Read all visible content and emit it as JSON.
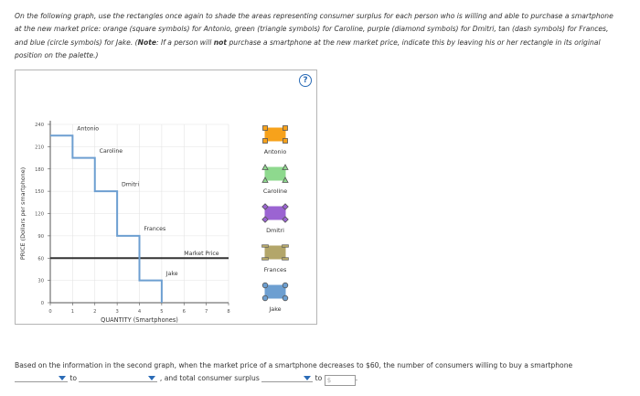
{
  "instructions": {
    "lead": "On the following graph, use the rectangles once again to shade the areas representing consumer surplus for each person who is willing and able to purchase a smartphone at the new market price: orange (square symbols) for Antonio, green (triangle symbols) for Caroline, purple (diamond symbols) for Dmitri, tan (dash symbols) for Frances, and blue (circle symbols) for Jake. (",
    "note_label": "Note",
    "note_text": ": If a person will ",
    "note_not": "not",
    "note_rest": " purchase a smartphone at the new market price, indicate this by leaving his or her rectangle in its original position on the palette.)"
  },
  "help_label": "?",
  "graph": {
    "y_axis_title": "PRICE (Dollars per smartphone)",
    "x_axis_title": "QUANTITY (Smartphones)",
    "y_ticks": [
      "240",
      "210",
      "180",
      "150",
      "120",
      "90",
      "60",
      "30",
      "0"
    ],
    "x_ticks": [
      "0",
      "1",
      "2",
      "3",
      "4",
      "5",
      "6",
      "7",
      "8"
    ],
    "market_price_label": "Market Price",
    "demand_labels": [
      "Antonio",
      "Caroline",
      "Dmitri",
      "Frances",
      "Jake"
    ]
  },
  "chart_data": {
    "type": "line",
    "title": "",
    "xlabel": "QUANTITY (Smartphones)",
    "ylabel": "PRICE (Dollars per smartphone)",
    "xlim": [
      0,
      8
    ],
    "ylim": [
      0,
      240
    ],
    "series": [
      {
        "name": "",
        "x": [
          0,
          1,
          1,
          2,
          2,
          3,
          3,
          4,
          4,
          5,
          5
        ],
        "y": [
          225,
          225,
          195,
          195,
          150,
          150,
          90,
          90,
          30,
          30,
          0
        ]
      }
    ],
    "market_price": 60,
    "labels": [
      {
        "text": "Antonio",
        "x": 1.2,
        "y": 232
      },
      {
        "text": "Caroline",
        "x": 2.2,
        "y": 202
      },
      {
        "text": "Dmitri",
        "x": 3.2,
        "y": 157
      },
      {
        "text": "Frances",
        "x": 4.2,
        "y": 97
      },
      {
        "text": "Jake",
        "x": 5.2,
        "y": 37
      },
      {
        "text": "Market Price",
        "x": 6,
        "y": 64
      }
    ]
  },
  "palette": [
    {
      "name": "Antonio",
      "color": "#f7a21b",
      "symbol": "square"
    },
    {
      "name": "Caroline",
      "color": "#8ed98e",
      "symbol": "triangle"
    },
    {
      "name": "Dmitri",
      "color": "#9b64d2",
      "symbol": "diamond"
    },
    {
      "name": "Frances",
      "color": "#b3a66a",
      "symbol": "dash"
    },
    {
      "name": "Jake",
      "color": "#6d9fd1",
      "symbol": "circle"
    }
  ],
  "bottom": {
    "text1": "Based on the information in the second graph, when the market price of a smartphone decreases to $60, the number of consumers willing to buy a smartphone",
    "to1": "to",
    "and_text": ", and total consumer surplus",
    "to2": "to",
    "dollar": "$",
    "period": "."
  }
}
